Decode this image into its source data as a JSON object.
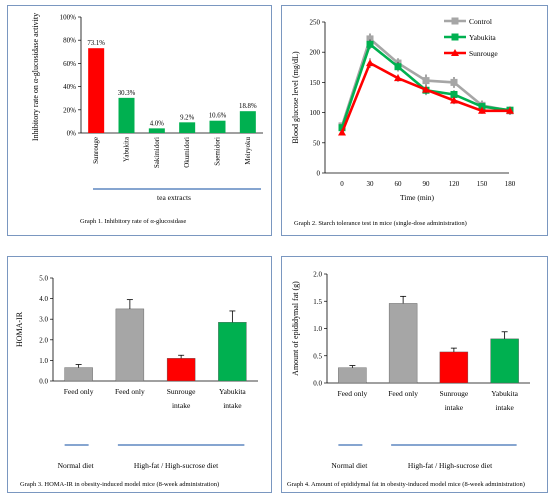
{
  "chart_data": [
    {
      "type": "bar",
      "ylabel": "Inhibitory rate on α-glucosidase activity",
      "xlabel": "tea extracts",
      "caption": "Graph 1. Inhibitory rate of α-glucosidase",
      "ylim": [
        0,
        100
      ],
      "yticks": [
        "0%",
        "20%",
        "40%",
        "60%",
        "80%",
        "100%"
      ],
      "categories": [
        "Sunrouge",
        "Yabukita",
        "Sakimidori",
        "Okumidori",
        "Saemidori",
        "Meiryoku"
      ],
      "values": [
        73.1,
        30.3,
        4.0,
        9.2,
        10.6,
        18.8
      ],
      "value_labels": [
        "73.1%",
        "30.3%",
        "4.0%",
        "9.2%",
        "10.6%",
        "18.8%"
      ],
      "colors": [
        "#ff0000",
        "#00b050",
        "#00b050",
        "#00b050",
        "#00b050",
        "#00b050"
      ]
    },
    {
      "type": "line",
      "ylabel": "Blood glucose level (mg/dL)",
      "xlabel": "Time (min)",
      "caption": "Graph 2. Starch tolerance test in mice (single-dose administration)",
      "ylim": [
        0,
        250
      ],
      "yticks": [
        "0",
        "50",
        "100",
        "150",
        "200",
        "250"
      ],
      "x": [
        0,
        30,
        60,
        90,
        120,
        150,
        180
      ],
      "x_labels": [
        "0",
        "30",
        "60",
        "90",
        "120",
        "150",
        "180"
      ],
      "legend_position": "top-right",
      "series": [
        {
          "name": "Control",
          "color": "#a6a6a6",
          "marker": "square",
          "values": [
            78,
            222,
            182,
            153,
            150,
            112,
            103
          ],
          "errors": [
            4,
            9,
            8,
            10,
            9,
            8,
            7
          ]
        },
        {
          "name": "Yabukita",
          "color": "#00b050",
          "marker": "square",
          "values": [
            75,
            213,
            176,
            137,
            130,
            110,
            104
          ],
          "errors": [
            4,
            8,
            8,
            8,
            7,
            6,
            6
          ]
        },
        {
          "name": "Sunrouge",
          "color": "#ff0000",
          "marker": "triangle",
          "values": [
            67,
            182,
            157,
            138,
            120,
            103,
            103
          ],
          "errors": [
            4,
            8,
            6,
            6,
            6,
            5,
            5
          ]
        }
      ]
    },
    {
      "type": "bar",
      "ylabel": "HOMA-IR",
      "caption": "Graph 3. HOMA-IR in obesity-induced model mice (8-week administration)",
      "ylim": [
        0,
        5
      ],
      "yticks": [
        "0.0",
        "1.0",
        "2.0",
        "3.0",
        "4.0",
        "5.0"
      ],
      "categories": [
        "Feed only",
        "Feed only",
        "Sunrouge intake",
        "Yabukita intake"
      ],
      "values": [
        0.65,
        3.5,
        1.1,
        2.85
      ],
      "errors": [
        0.15,
        0.45,
        0.15,
        0.55
      ],
      "colors": [
        "#a6a6a6",
        "#a6a6a6",
        "#ff0000",
        "#00b050"
      ],
      "groups": [
        "Normal diet",
        "High-fat / High-sucrose diet"
      ]
    },
    {
      "type": "bar",
      "ylabel": "Amount of epididymal fat (g)",
      "caption": "Graph 4. Amount of epididymal fat in obesity-induced model mice (8-week administration)",
      "ylim": [
        0,
        2
      ],
      "yticks": [
        "0.0",
        "0.5",
        "1.0",
        "1.5",
        "2.0"
      ],
      "categories": [
        "Feed only",
        "Feed only",
        "Sunrouge intake",
        "Yabukita intake"
      ],
      "values": [
        0.28,
        1.46,
        0.57,
        0.81
      ],
      "errors": [
        0.04,
        0.13,
        0.07,
        0.13
      ],
      "colors": [
        "#a6a6a6",
        "#a6a6a6",
        "#ff0000",
        "#00b050"
      ],
      "groups": [
        "Normal diet",
        "High-fat / High-sucrose diet"
      ]
    }
  ]
}
